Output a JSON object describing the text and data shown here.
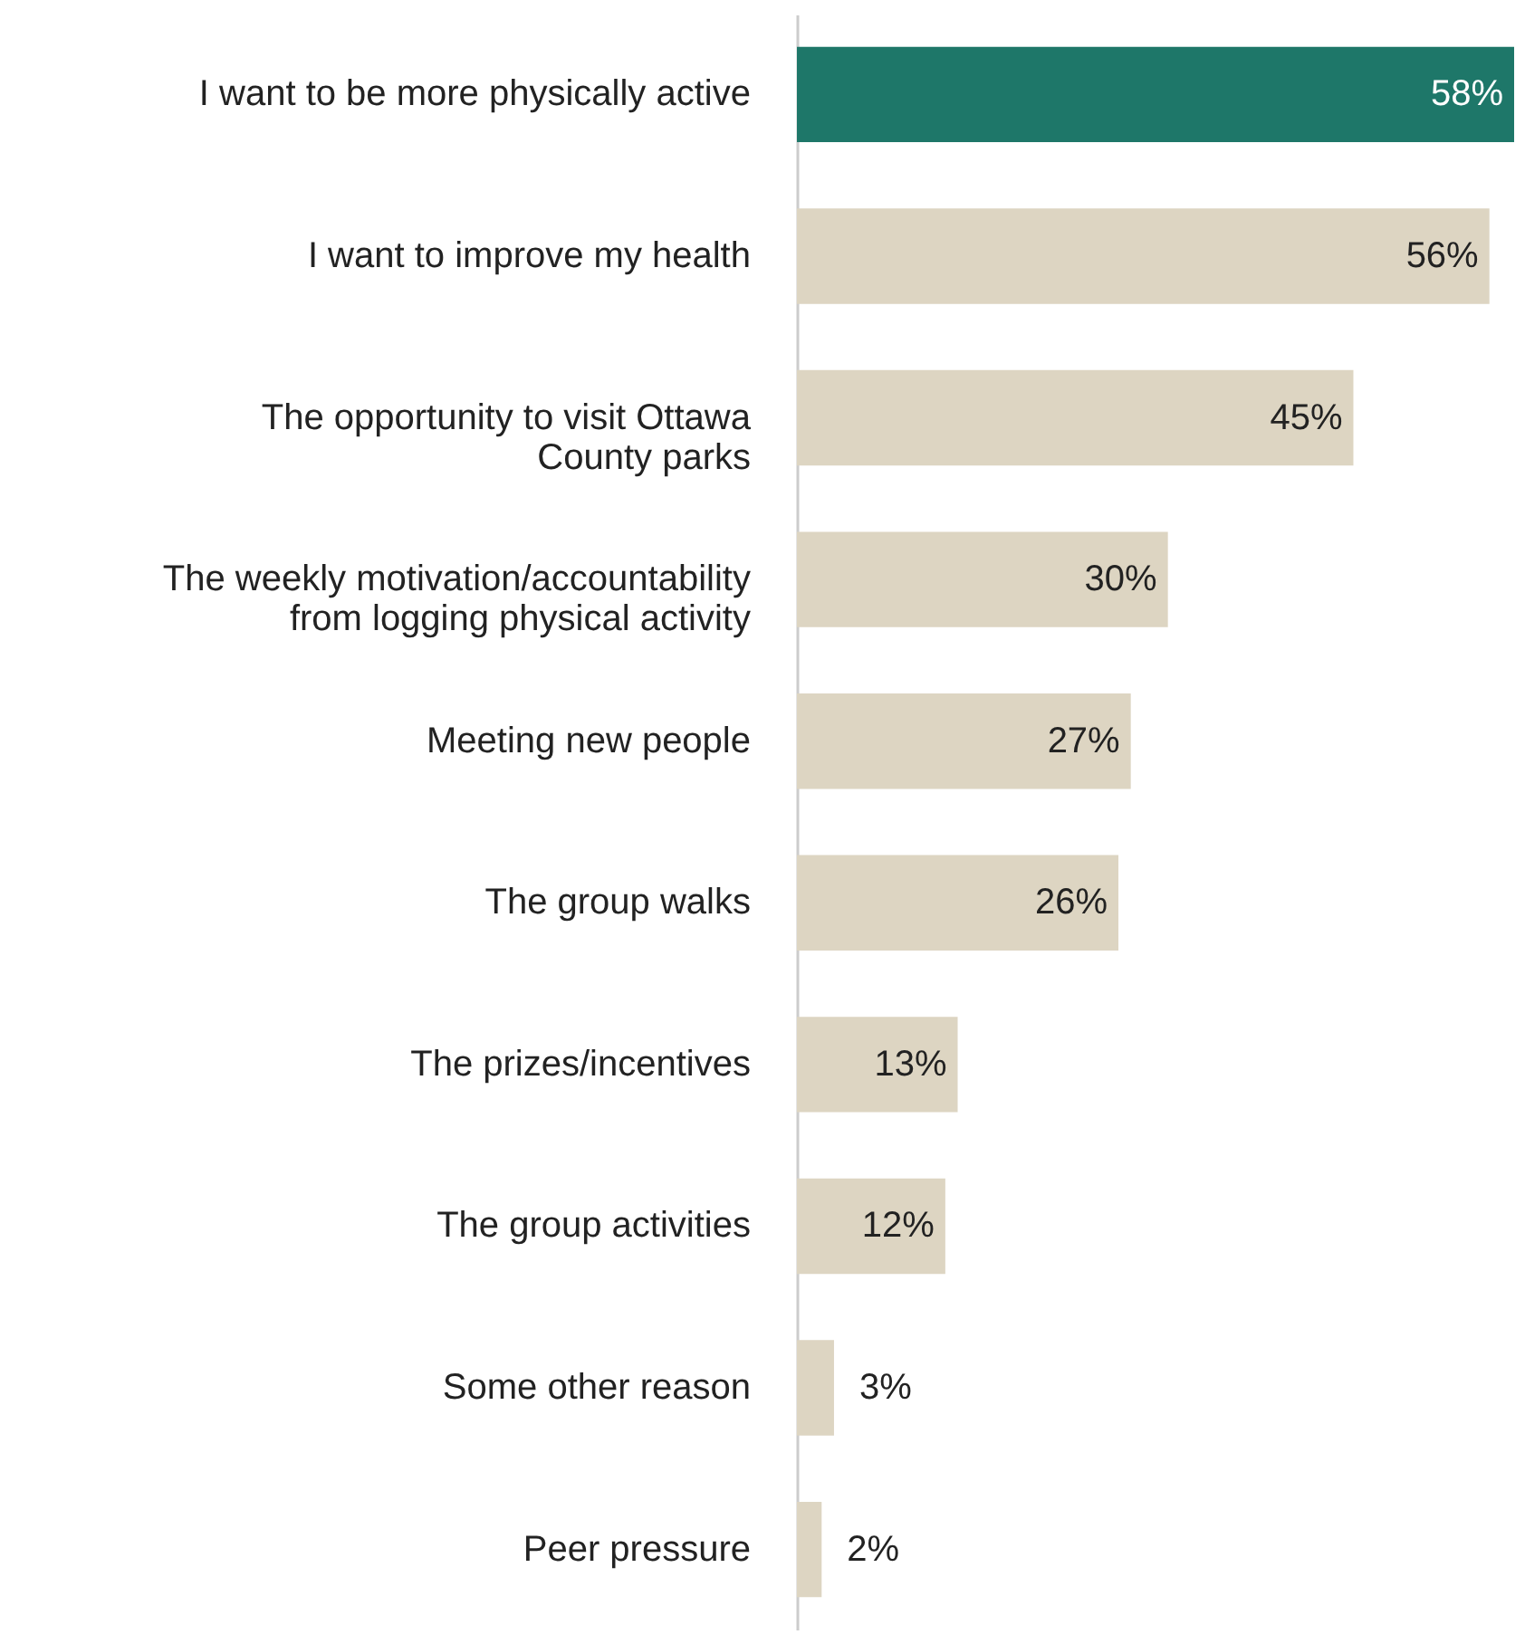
{
  "chart_data": {
    "type": "bar",
    "orientation": "horizontal",
    "categories": [
      "I want to be more physically active",
      "I want to improve my health",
      "The opportunity to visit Ottawa County parks",
      "The weekly motivation/accountability from logging physical activity",
      "Meeting new people",
      "The group walks",
      "The prizes/incentives",
      "The group activities",
      "Some other reason",
      "Peer pressure"
    ],
    "values": [
      58,
      56,
      45,
      30,
      27,
      26,
      13,
      12,
      3,
      2
    ],
    "colors": [
      "#1e7769",
      "#ddd5c2",
      "#ddd5c2",
      "#ddd5c2",
      "#ddd5c2",
      "#ddd5c2",
      "#ddd5c2",
      "#ddd5c2",
      "#ddd5c2",
      "#ddd5c2"
    ],
    "value_labels": [
      "58%",
      "56%",
      "45%",
      "30%",
      "27%",
      "26%",
      "13%",
      "12%",
      "3%",
      "2%"
    ]
  }
}
